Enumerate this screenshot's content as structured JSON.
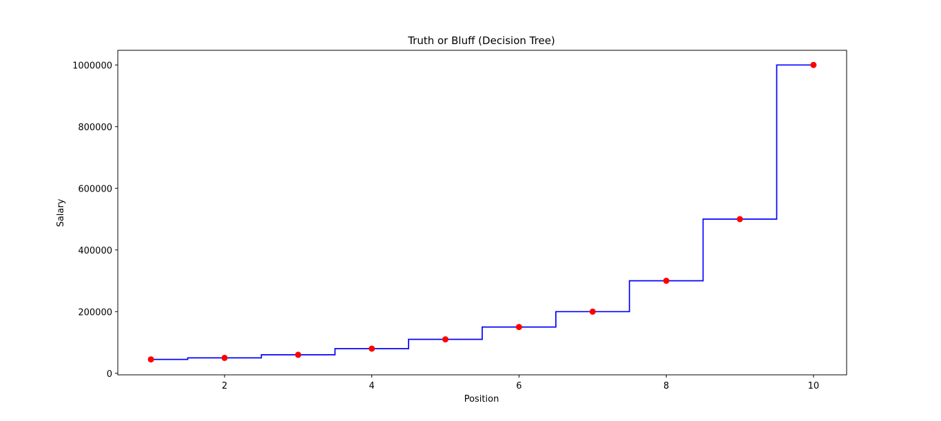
{
  "chart_data": {
    "type": "scatter",
    "title": "Truth or Bluff  (Decision Tree)",
    "xlabel": "Position",
    "ylabel": "Salary",
    "xlim": [
      0.55,
      10.45
    ],
    "ylim": [
      -5000,
      1047500
    ],
    "x_ticks": [
      2,
      4,
      6,
      8,
      10
    ],
    "x_tick_labels": [
      "2",
      "4",
      "6",
      "8",
      "10"
    ],
    "y_ticks": [
      0,
      200000,
      400000,
      600000,
      800000,
      1000000
    ],
    "y_tick_labels": [
      "0",
      "200000",
      "400000",
      "600000",
      "800000",
      "1000000"
    ],
    "grid": false,
    "series": [
      {
        "kind": "scatter",
        "color": "#ff0000",
        "x": [
          1,
          2,
          3,
          4,
          5,
          6,
          7,
          8,
          9,
          10
        ],
        "y": [
          45000,
          50000,
          60000,
          80000,
          110000,
          150000,
          200000,
          300000,
          500000,
          1000000
        ]
      },
      {
        "kind": "step-line",
        "color": "#0000ff",
        "x": [
          1,
          1.5,
          1.5,
          2.5,
          2.5,
          3.5,
          3.5,
          4.5,
          4.5,
          5.5,
          5.5,
          6.5,
          6.5,
          7.5,
          7.5,
          8.5,
          8.5,
          9.5,
          9.5,
          10
        ],
        "y": [
          45000,
          45000,
          50000,
          50000,
          60000,
          60000,
          80000,
          80000,
          110000,
          110000,
          150000,
          150000,
          200000,
          200000,
          300000,
          300000,
          500000,
          500000,
          1000000,
          1000000
        ]
      }
    ]
  }
}
